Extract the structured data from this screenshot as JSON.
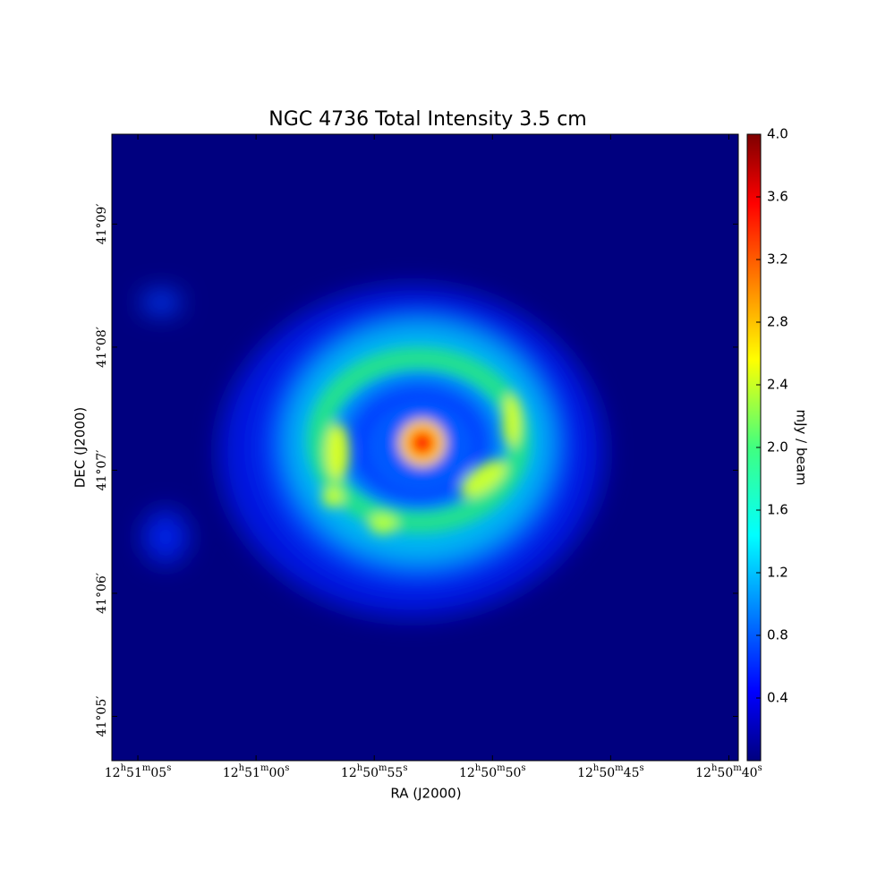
{
  "chart_data": {
    "type": "image",
    "title": "NGC 4736 Total Intensity 3.5 cm",
    "x_label": "RA (J2000)",
    "y_label": "DEC (J2000)",
    "colorbar_label": "mJy / beam",
    "colormap": "jet",
    "xlim": [
      66.1,
      39.6
    ],
    "xticks": [
      {
        "value": 65,
        "label": "12h51m05s"
      },
      {
        "value": 60,
        "label": "12h51m00s"
      },
      {
        "value": 55,
        "label": "12h50m55s"
      },
      {
        "value": 50,
        "label": "12h50m50s"
      },
      {
        "value": 45,
        "label": "12h50m45s"
      },
      {
        "value": 40,
        "label": "12h50m40s"
      }
    ],
    "ylim": [
      4.64,
      9.73
    ],
    "yticks": [
      {
        "value": 9,
        "label": "41°09′"
      },
      {
        "value": 8,
        "label": "41°08′"
      },
      {
        "value": 7,
        "label": "41°07′"
      },
      {
        "value": 6,
        "label": "41°06′"
      },
      {
        "value": 5,
        "label": "41°05′"
      }
    ],
    "clim": [
      0,
      4.0
    ],
    "cticks": [
      0.4,
      0.8,
      1.2,
      1.6,
      {
        "value": 2.0,
        "label": "2.0"
      },
      2.4,
      2.8,
      3.2,
      3.6,
      {
        "value": 4.0,
        "label": "4.0"
      }
    ]
  }
}
